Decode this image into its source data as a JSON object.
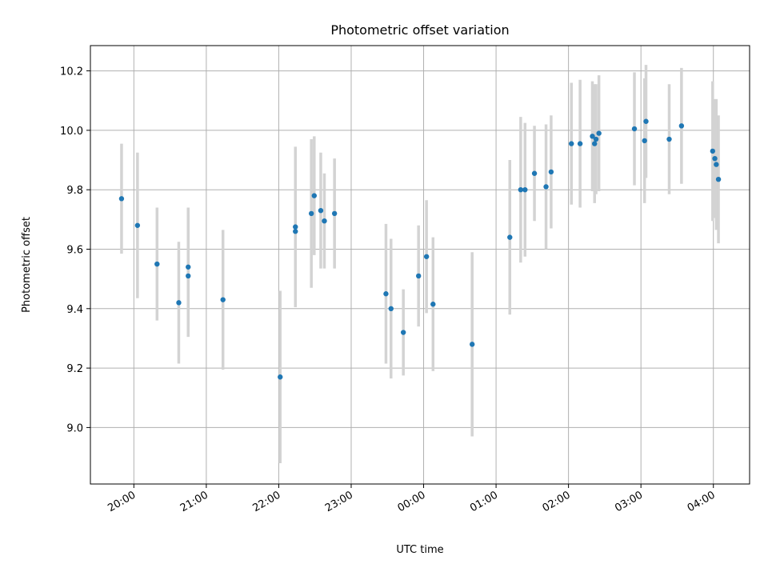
{
  "chart_data": {
    "type": "scatter",
    "title": "Photometric offset variation",
    "xlabel": "UTC time",
    "ylabel": "Photometric offset",
    "x_axis": {
      "unit": "hours since 00:00 UTC (negative = previous day)",
      "range": [
        -4.6,
        4.5
      ],
      "ticks": [
        {
          "value": -4,
          "label": "20:00"
        },
        {
          "value": -3,
          "label": "21:00"
        },
        {
          "value": -2,
          "label": "22:00"
        },
        {
          "value": -1,
          "label": "23:00"
        },
        {
          "value": 0,
          "label": "00:00"
        },
        {
          "value": 1,
          "label": "01:00"
        },
        {
          "value": 2,
          "label": "02:00"
        },
        {
          "value": 3,
          "label": "03:00"
        },
        {
          "value": 4,
          "label": "04:00"
        }
      ]
    },
    "y_axis": {
      "range": [
        8.81,
        10.285
      ],
      "ticks": [
        {
          "value": 9.0,
          "label": "9.0"
        },
        {
          "value": 9.2,
          "label": "9.2"
        },
        {
          "value": 9.4,
          "label": "9.4"
        },
        {
          "value": 9.6,
          "label": "9.6"
        },
        {
          "value": 9.8,
          "label": "9.8"
        },
        {
          "value": 10.0,
          "label": "10.0"
        },
        {
          "value": 10.2,
          "label": "10.2"
        }
      ]
    },
    "grid": true,
    "colors": {
      "points": "#1f77b4",
      "errorbars": "#d3d3d3",
      "grid": "#b0b0b0"
    },
    "points": [
      {
        "x": -4.17,
        "y": 9.77,
        "yerr": 0.185
      },
      {
        "x": -3.95,
        "y": 9.68,
        "yerr": 0.245
      },
      {
        "x": -3.68,
        "y": 9.55,
        "yerr": 0.19
      },
      {
        "x": -3.38,
        "y": 9.42,
        "yerr": 0.205
      },
      {
        "x": -3.25,
        "y": 9.54,
        "yerr": 0.2
      },
      {
        "x": -3.25,
        "y": 9.51,
        "yerr": 0.205
      },
      {
        "x": -2.77,
        "y": 9.43,
        "yerr": 0.235
      },
      {
        "x": -1.98,
        "y": 9.17,
        "yerr": 0.29
      },
      {
        "x": -1.77,
        "y": 9.675,
        "yerr": 0.27
      },
      {
        "x": -1.77,
        "y": 9.66,
        "yerr": 0.24
      },
      {
        "x": -1.55,
        "y": 9.72,
        "yerr": 0.25
      },
      {
        "x": -1.51,
        "y": 9.78,
        "yerr": 0.2
      },
      {
        "x": -1.42,
        "y": 9.73,
        "yerr": 0.195
      },
      {
        "x": -1.37,
        "y": 9.695,
        "yerr": 0.16
      },
      {
        "x": -1.23,
        "y": 9.72,
        "yerr": 0.185
      },
      {
        "x": -0.52,
        "y": 9.45,
        "yerr": 0.235
      },
      {
        "x": -0.45,
        "y": 9.4,
        "yerr": 0.235
      },
      {
        "x": -0.28,
        "y": 9.32,
        "yerr": 0.145
      },
      {
        "x": -0.07,
        "y": 9.51,
        "yerr": 0.17
      },
      {
        "x": 0.04,
        "y": 9.575,
        "yerr": 0.19
      },
      {
        "x": 0.13,
        "y": 9.415,
        "yerr": 0.225
      },
      {
        "x": 0.67,
        "y": 9.28,
        "yerr": 0.31
      },
      {
        "x": 1.19,
        "y": 9.64,
        "yerr": 0.26
      },
      {
        "x": 1.34,
        "y": 9.8,
        "yerr": 0.245
      },
      {
        "x": 1.4,
        "y": 9.8,
        "yerr": 0.225
      },
      {
        "x": 1.53,
        "y": 9.855,
        "yerr": 0.16
      },
      {
        "x": 1.69,
        "y": 9.81,
        "yerr": 0.21
      },
      {
        "x": 1.76,
        "y": 9.86,
        "yerr": 0.19
      },
      {
        "x": 2.04,
        "y": 9.955,
        "yerr": 0.205
      },
      {
        "x": 2.16,
        "y": 9.955,
        "yerr": 0.215
      },
      {
        "x": 2.33,
        "y": 9.98,
        "yerr": 0.185
      },
      {
        "x": 2.36,
        "y": 9.955,
        "yerr": 0.2
      },
      {
        "x": 2.38,
        "y": 9.97,
        "yerr": 0.185
      },
      {
        "x": 2.42,
        "y": 9.99,
        "yerr": 0.195
      },
      {
        "x": 2.91,
        "y": 10.005,
        "yerr": 0.19
      },
      {
        "x": 3.05,
        "y": 9.965,
        "yerr": 0.21
      },
      {
        "x": 3.07,
        "y": 10.03,
        "yerr": 0.19
      },
      {
        "x": 3.39,
        "y": 9.97,
        "yerr": 0.185
      },
      {
        "x": 3.56,
        "y": 10.015,
        "yerr": 0.195
      },
      {
        "x": 3.99,
        "y": 9.93,
        "yerr": 0.235
      },
      {
        "x": 4.02,
        "y": 9.905,
        "yerr": 0.2
      },
      {
        "x": 4.04,
        "y": 9.885,
        "yerr": 0.22
      },
      {
        "x": 4.07,
        "y": 9.835,
        "yerr": 0.215
      }
    ]
  }
}
